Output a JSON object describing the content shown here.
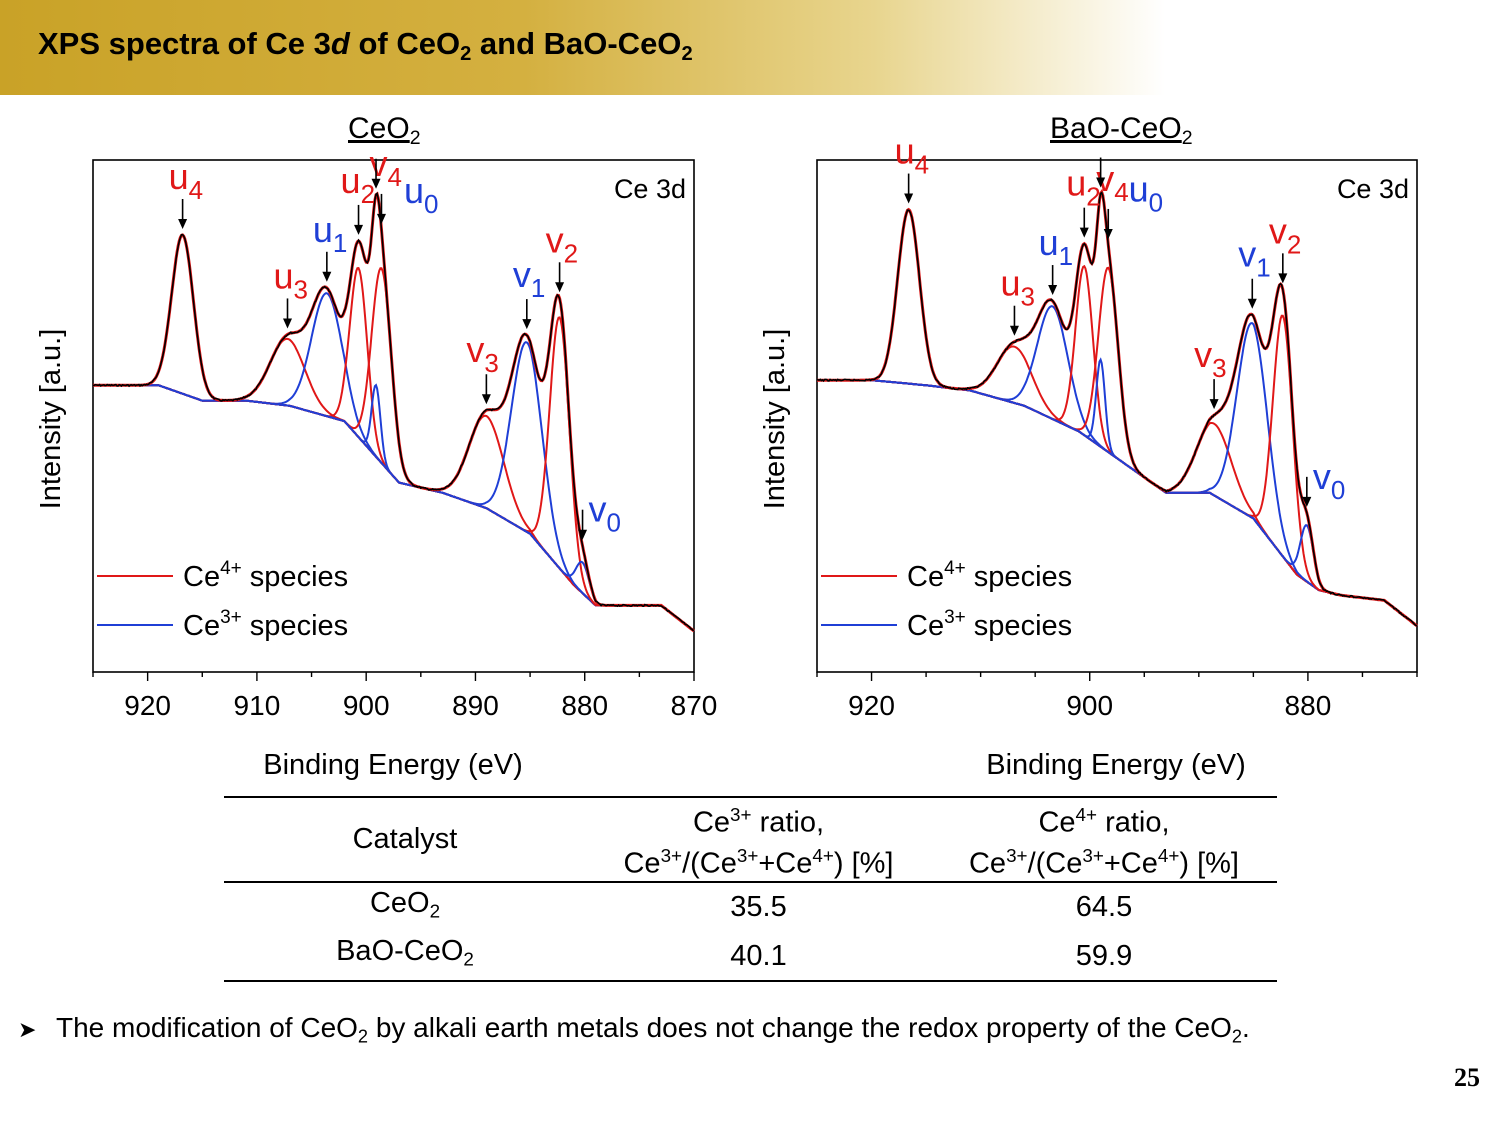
{
  "slide": {
    "title_parts": [
      "XPS spectra of Ce 3",
      "d",
      " of CeO",
      "2",
      " and BaO-CeO",
      "2"
    ],
    "page_number": "25",
    "bullet_parts": [
      "The modification of CeO",
      "2",
      " by alkali earth metals does not change the redox property of the CeO",
      "2",
      "."
    ],
    "bullet_icon": "arrow-right-icon"
  },
  "panels": [
    {
      "title_main": "CeO",
      "title_sub": "2"
    },
    {
      "title_main": "BaO-CeO",
      "title_sub": "2"
    }
  ],
  "colors": {
    "ce4": "#e01818",
    "ce3": "#1f3fd6",
    "raw": "#000000",
    "banner": "#c9a227"
  },
  "chart_data": [
    {
      "type": "line",
      "title": "CeO2",
      "annotation": "Ce 3d",
      "xlabel": "Binding Energy (eV)",
      "ylabel": "Intensity [a.u.]",
      "xlim": [
        925,
        870
      ],
      "x_reversed": true,
      "xticks": [
        920,
        910,
        900,
        890,
        880,
        870
      ],
      "yticks": [],
      "ylim": [
        0,
        1
      ],
      "legend": {
        "placement": "bottom-left",
        "entries": [
          {
            "label_main": "Ce",
            "label_sup": "4+",
            "label_tail": " species",
            "color": "#e01818"
          },
          {
            "label_main": "Ce",
            "label_sup": "3+",
            "label_tail": " species",
            "color": "#1f3fd6"
          }
        ]
      },
      "baseline": [
        [
          925,
          0.56
        ],
        [
          919,
          0.56
        ],
        [
          915,
          0.53
        ],
        [
          911,
          0.53
        ],
        [
          907,
          0.52
        ],
        [
          902,
          0.49
        ],
        [
          897,
          0.37
        ],
        [
          893,
          0.35
        ],
        [
          889,
          0.32
        ],
        [
          885,
          0.27
        ],
        [
          881,
          0.17
        ],
        [
          879,
          0.13
        ],
        [
          877,
          0.13
        ],
        [
          873,
          0.13
        ],
        [
          870,
          0.08
        ]
      ],
      "peaks": [
        {
          "label": "u",
          "sub": "4",
          "species": "Ce4+",
          "center": 916.8,
          "height": 0.31,
          "width": 1.0
        },
        {
          "label": "u",
          "sub": "3",
          "species": "Ce4+",
          "center": 907.2,
          "height": 0.13,
          "width": 1.6
        },
        {
          "label": "u",
          "sub": "1",
          "species": "Ce3+",
          "center": 903.6,
          "height": 0.24,
          "width": 1.4
        },
        {
          "label": "u",
          "sub": "2",
          "species": "Ce4+",
          "center": 900.7,
          "height": 0.33,
          "width": 0.8
        },
        {
          "label": "v",
          "sub": "4",
          "species": "Ce4+",
          "center": 898.6,
          "height": 0.38,
          "width": 0.9
        },
        {
          "label": "u",
          "sub": "0",
          "species": "Ce3+",
          "center": 899.1,
          "height": 0.14,
          "width": 0.4
        },
        {
          "label": "v",
          "sub": "3",
          "species": "Ce4+",
          "center": 889.0,
          "height": 0.18,
          "width": 1.6
        },
        {
          "label": "v",
          "sub": "1",
          "species": "Ce3+",
          "center": 885.3,
          "height": 0.37,
          "width": 1.4
        },
        {
          "label": "v",
          "sub": "2",
          "species": "Ce4+",
          "center": 882.3,
          "height": 0.49,
          "width": 0.9
        },
        {
          "label": "v",
          "sub": "0",
          "species": "Ce3+",
          "center": 880.2,
          "height": 0.06,
          "width": 0.6
        }
      ]
    },
    {
      "type": "line",
      "title": "BaO-CeO2",
      "annotation": "Ce 3d",
      "xlabel": "Binding Energy (eV)",
      "ylabel": "Intensity [a.u.]",
      "xlim": [
        925,
        870
      ],
      "x_reversed": true,
      "xticks": [
        920,
        900,
        880
      ],
      "yticks": [],
      "ylim": [
        0,
        1
      ],
      "legend": {
        "placement": "bottom-left",
        "entries": [
          {
            "label_main": "Ce",
            "label_sup": "4+",
            "label_tail": " species",
            "color": "#e01818"
          },
          {
            "label_main": "Ce",
            "label_sup": "3+",
            "label_tail": " species",
            "color": "#1f3fd6"
          }
        ]
      },
      "baseline": [
        [
          925,
          0.57
        ],
        [
          920,
          0.57
        ],
        [
          915,
          0.56
        ],
        [
          911,
          0.55
        ],
        [
          906,
          0.52
        ],
        [
          901,
          0.47
        ],
        [
          897,
          0.41
        ],
        [
          893,
          0.35
        ],
        [
          889,
          0.35
        ],
        [
          885,
          0.3
        ],
        [
          881,
          0.19
        ],
        [
          879,
          0.16
        ],
        [
          877,
          0.15
        ],
        [
          873,
          0.14
        ],
        [
          870,
          0.09
        ]
      ],
      "peaks": [
        {
          "label": "u",
          "sub": "4",
          "species": "Ce4+",
          "center": 916.6,
          "height": 0.34,
          "width": 1.0
        },
        {
          "label": "u",
          "sub": "3",
          "species": "Ce4+",
          "center": 906.9,
          "height": 0.11,
          "width": 1.6
        },
        {
          "label": "u",
          "sub": "1",
          "species": "Ce3+",
          "center": 903.4,
          "height": 0.22,
          "width": 1.4
        },
        {
          "label": "u",
          "sub": "2",
          "species": "Ce4+",
          "center": 900.5,
          "height": 0.33,
          "width": 0.8
        },
        {
          "label": "v",
          "sub": "4",
          "species": "Ce4+",
          "center": 898.3,
          "height": 0.36,
          "width": 0.9
        },
        {
          "label": "u",
          "sub": "0",
          "species": "Ce3+",
          "center": 899.0,
          "height": 0.17,
          "width": 0.4
        },
        {
          "label": "v",
          "sub": "3",
          "species": "Ce4+",
          "center": 888.6,
          "height": 0.14,
          "width": 1.6
        },
        {
          "label": "v",
          "sub": "1",
          "species": "Ce3+",
          "center": 885.1,
          "height": 0.38,
          "width": 1.4
        },
        {
          "label": "v",
          "sub": "2",
          "species": "Ce4+",
          "center": 882.3,
          "height": 0.47,
          "width": 0.9
        },
        {
          "label": "v",
          "sub": "0",
          "species": "Ce3+",
          "center": 880.1,
          "height": 0.11,
          "width": 0.6
        }
      ]
    }
  ],
  "table": {
    "header": {
      "catalyst": "Catalyst",
      "ce3_line1_main": "Ce",
      "ce3_line1_sup": "3+",
      "ce3_line1_tail": " ratio,",
      "ce3_line2": [
        {
          "t": "Ce"
        },
        {
          "t": "3+",
          "sup": true
        },
        {
          "t": "/(Ce"
        },
        {
          "t": "3+",
          "sup": true
        },
        {
          "t": "+Ce"
        },
        {
          "t": "4+",
          "sup": true
        },
        {
          "t": ") [%]"
        }
      ],
      "ce4_line1_main": "Ce",
      "ce4_line1_sup": "4+",
      "ce4_line1_tail": " ratio,",
      "ce4_line2": [
        {
          "t": "Ce"
        },
        {
          "t": "3+",
          "sup": true
        },
        {
          "t": "/(Ce"
        },
        {
          "t": "3+",
          "sup": true
        },
        {
          "t": "+Ce"
        },
        {
          "t": "4+",
          "sup": true
        },
        {
          "t": ") [%]"
        }
      ]
    },
    "rows": [
      {
        "catalyst_main": "CeO",
        "catalyst_sub": "2",
        "ce3": "35.5",
        "ce4": "64.5"
      },
      {
        "catalyst_main": "BaO-CeO",
        "catalyst_sub": "2",
        "ce3": "40.1",
        "ce4": "59.9"
      }
    ]
  }
}
